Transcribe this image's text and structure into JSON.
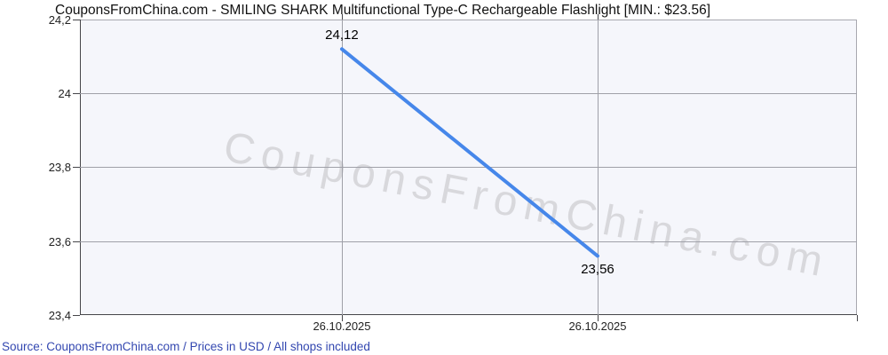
{
  "header": {
    "title": "CouponsFromChina.com - SMILING SHARK Multifunctional Type-C Rechargeable Flashlight [MIN.: $23.56]"
  },
  "watermark": {
    "text": "CouponsFromChina.com"
  },
  "footer": {
    "source_line": "Source: CouponsFromChina.com / Prices in USD / All shops included"
  },
  "colors": {
    "line": "#4687ea",
    "grid": "#9fa0a8",
    "axis_dark": "#46464a",
    "border_light": "#a8a8b0",
    "plot_background": "#f5f6fb",
    "watermark": "#d8d8dc",
    "footer_link": "#3347b0"
  },
  "chart_data": {
    "type": "line",
    "title": "CouponsFromChina.com - SMILING SHARK Multifunctional Type-C Rechargeable Flashlight [MIN.: $23.56]",
    "xlabel": "",
    "ylabel": "",
    "ylim": [
      23.4,
      24.2
    ],
    "grid": true,
    "legend": "none",
    "min_price_label": "$23.56",
    "currency": "USD",
    "yticks": [
      {
        "value": 24.2,
        "label": "24,2"
      },
      {
        "value": 24.0,
        "label": "24"
      },
      {
        "value": 23.8,
        "label": "23,8"
      },
      {
        "value": 23.6,
        "label": "23,6"
      },
      {
        "value": 23.4,
        "label": "23,4"
      }
    ],
    "xticks": [
      {
        "label": "26.10.2025",
        "x_frac": 0.3371,
        "top_tick": true
      },
      {
        "label": "26.10.2025",
        "x_frac": 0.6663,
        "top_tick": true
      },
      {
        "label": "",
        "x_frac": 1.0,
        "top_tick": false
      }
    ],
    "series": [
      {
        "name": "price",
        "color": "#4687ea",
        "points": [
          {
            "date": "26.10.2025",
            "value": 24.12,
            "label": "24,12",
            "x_frac": 0.3371,
            "label_pos": "above"
          },
          {
            "date": "26.10.2025",
            "value": 23.56,
            "label": "23,56",
            "x_frac": 0.6663,
            "label_pos": "below"
          }
        ]
      }
    ]
  }
}
